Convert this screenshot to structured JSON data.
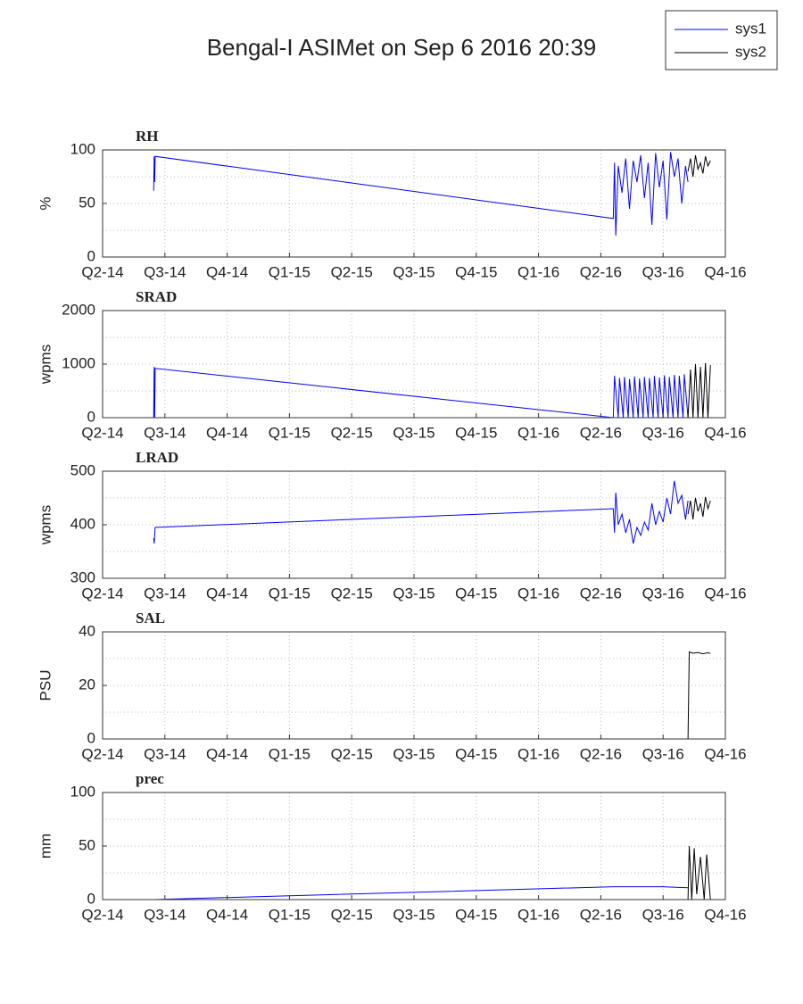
{
  "title": "Bengal-I ASIMet on Sep  6 2016 20:39",
  "chart_data": [
    {
      "type": "line",
      "title": "RH",
      "y_label": "%",
      "ylim": [
        0,
        100
      ],
      "yticks": [
        0,
        50,
        100
      ],
      "yminor_ticks": [
        25,
        75
      ],
      "xlim": [
        2014.25,
        2016.75
      ],
      "xticks": [
        {
          "value": 2014.25,
          "label": "Q2-14"
        },
        {
          "value": 2014.5,
          "label": "Q3-14"
        },
        {
          "value": 2014.75,
          "label": "Q4-14"
        },
        {
          "value": 2015.0,
          "label": "Q1-15"
        },
        {
          "value": 2015.25,
          "label": "Q2-15"
        },
        {
          "value": 2015.5,
          "label": "Q3-15"
        },
        {
          "value": 2015.75,
          "label": "Q4-15"
        },
        {
          "value": 2016.0,
          "label": "Q1-16"
        },
        {
          "value": 2016.25,
          "label": "Q2-16"
        },
        {
          "value": 2016.5,
          "label": "Q3-16"
        },
        {
          "value": 2016.75,
          "label": "Q4-16"
        }
      ],
      "grid": true,
      "series": [
        {
          "name": "sys1",
          "color": "#0000ff",
          "x": [
            2014.455,
            2014.457,
            2014.459,
            2014.461,
            2016.3,
            2016.305,
            2016.31,
            2016.32,
            2016.335,
            2016.35,
            2016.365,
            2016.38,
            2016.395,
            2016.41,
            2016.425,
            2016.44,
            2016.455,
            2016.47,
            2016.485,
            2016.5,
            2016.515,
            2016.53,
            2016.545,
            2016.56,
            2016.575,
            2016.59,
            2016.6
          ],
          "values": [
            62,
            94,
            70,
            94,
            36,
            88,
            20,
            85,
            60,
            92,
            45,
            90,
            70,
            95,
            55,
            88,
            30,
            97,
            65,
            90,
            35,
            98,
            75,
            92,
            50,
            85,
            70
          ]
        },
        {
          "name": "sys2",
          "color": "#000000",
          "x": [
            2016.6,
            2016.61,
            2016.62,
            2016.63,
            2016.64,
            2016.65,
            2016.66,
            2016.67,
            2016.68,
            2016.69
          ],
          "values": [
            80,
            92,
            75,
            95,
            82,
            88,
            78,
            94,
            85,
            90
          ]
        }
      ]
    },
    {
      "type": "line",
      "title": "SRAD",
      "y_label": "wpms",
      "ylim": [
        0,
        2000
      ],
      "yticks": [
        0,
        1000,
        2000
      ],
      "yminor_ticks": [
        500,
        1500
      ],
      "xlim": [
        2014.25,
        2016.75
      ],
      "xticks": [
        {
          "value": 2014.25,
          "label": "Q2-14"
        },
        {
          "value": 2014.5,
          "label": "Q3-14"
        },
        {
          "value": 2014.75,
          "label": "Q4-14"
        },
        {
          "value": 2015.0,
          "label": "Q1-15"
        },
        {
          "value": 2015.25,
          "label": "Q2-15"
        },
        {
          "value": 2015.5,
          "label": "Q3-15"
        },
        {
          "value": 2015.75,
          "label": "Q4-15"
        },
        {
          "value": 2016.0,
          "label": "Q1-16"
        },
        {
          "value": 2016.25,
          "label": "Q2-16"
        },
        {
          "value": 2016.5,
          "label": "Q3-16"
        },
        {
          "value": 2016.75,
          "label": "Q4-16"
        }
      ],
      "grid": true,
      "series": [
        {
          "name": "sys1",
          "color": "#0000ff",
          "x": [
            2014.455,
            2014.457,
            2014.459,
            2014.461,
            2016.3,
            2016.305,
            2016.32,
            2016.325,
            2016.34,
            2016.345,
            2016.36,
            2016.365,
            2016.38,
            2016.385,
            2016.4,
            2016.405,
            2016.42,
            2016.425,
            2016.44,
            2016.445,
            2016.46,
            2016.465,
            2016.48,
            2016.485,
            2016.5,
            2016.505,
            2016.52,
            2016.525,
            2016.54,
            2016.545,
            2016.56,
            2016.565,
            2016.58,
            2016.585,
            2016.6
          ],
          "values": [
            0,
            950,
            0,
            920,
            0,
            780,
            0,
            740,
            0,
            760,
            0,
            720,
            0,
            770,
            0,
            730,
            0,
            760,
            0,
            740,
            0,
            780,
            0,
            750,
            0,
            790,
            0,
            760,
            0,
            800,
            0,
            780,
            0,
            810,
            0
          ]
        },
        {
          "name": "sys2",
          "color": "#000000",
          "x": [
            2016.6,
            2016.61,
            2016.62,
            2016.63,
            2016.64,
            2016.65,
            2016.66,
            2016.67,
            2016.68,
            2016.69
          ],
          "values": [
            0,
            900,
            0,
            1000,
            0,
            950,
            0,
            1020,
            0,
            980
          ]
        }
      ]
    },
    {
      "type": "line",
      "title": "LRAD",
      "y_label": "wpms",
      "ylim": [
        300,
        500
      ],
      "yticks": [
        300,
        400,
        500
      ],
      "yminor_ticks": [
        350,
        450
      ],
      "xlim": [
        2014.25,
        2016.75
      ],
      "xticks": [
        {
          "value": 2014.25,
          "label": "Q2-14"
        },
        {
          "value": 2014.5,
          "label": "Q3-14"
        },
        {
          "value": 2014.75,
          "label": "Q4-14"
        },
        {
          "value": 2015.0,
          "label": "Q1-15"
        },
        {
          "value": 2015.25,
          "label": "Q2-15"
        },
        {
          "value": 2015.5,
          "label": "Q3-15"
        },
        {
          "value": 2015.75,
          "label": "Q4-15"
        },
        {
          "value": 2016.0,
          "label": "Q1-16"
        },
        {
          "value": 2016.25,
          "label": "Q2-16"
        },
        {
          "value": 2016.5,
          "label": "Q3-16"
        },
        {
          "value": 2016.75,
          "label": "Q4-16"
        }
      ],
      "grid": true,
      "series": [
        {
          "name": "sys1",
          "color": "#0000ff",
          "x": [
            2014.455,
            2014.457,
            2014.459,
            2014.461,
            2016.3,
            2016.305,
            2016.31,
            2016.32,
            2016.335,
            2016.35,
            2016.365,
            2016.38,
            2016.395,
            2016.41,
            2016.425,
            2016.44,
            2016.455,
            2016.47,
            2016.485,
            2016.5,
            2016.515,
            2016.53,
            2016.545,
            2016.56,
            2016.575,
            2016.59,
            2016.6
          ],
          "values": [
            375,
            365,
            380,
            395,
            430,
            385,
            460,
            400,
            420,
            385,
            410,
            365,
            395,
            380,
            405,
            390,
            440,
            400,
            425,
            405,
            450,
            420,
            482,
            440,
            455,
            410,
            445
          ]
        },
        {
          "name": "sys2",
          "color": "#000000",
          "x": [
            2016.6,
            2016.61,
            2016.62,
            2016.63,
            2016.64,
            2016.65,
            2016.66,
            2016.67,
            2016.68,
            2016.69
          ],
          "values": [
            420,
            445,
            410,
            450,
            425,
            440,
            415,
            452,
            430,
            445
          ]
        }
      ]
    },
    {
      "type": "line",
      "title": "SAL",
      "y_label": "PSU",
      "ylim": [
        0,
        40
      ],
      "yticks": [
        0,
        20,
        40
      ],
      "yminor_ticks": [
        10,
        30
      ],
      "xlim": [
        2014.25,
        2016.75
      ],
      "xticks": [
        {
          "value": 2014.25,
          "label": "Q2-14"
        },
        {
          "value": 2014.5,
          "label": "Q3-14"
        },
        {
          "value": 2014.75,
          "label": "Q4-14"
        },
        {
          "value": 2015.0,
          "label": "Q1-15"
        },
        {
          "value": 2015.25,
          "label": "Q2-15"
        },
        {
          "value": 2015.5,
          "label": "Q3-15"
        },
        {
          "value": 2015.75,
          "label": "Q4-15"
        },
        {
          "value": 2016.0,
          "label": "Q1-16"
        },
        {
          "value": 2016.25,
          "label": "Q2-16"
        },
        {
          "value": 2016.5,
          "label": "Q3-16"
        },
        {
          "value": 2016.75,
          "label": "Q4-16"
        }
      ],
      "grid": true,
      "series": [
        {
          "name": "sys1",
          "color": "#0000ff",
          "x": [
            2014.455,
            2016.6
          ],
          "values": [
            0,
            0
          ]
        },
        {
          "name": "sys2",
          "color": "#000000",
          "x": [
            2016.6,
            2016.605,
            2016.62,
            2016.64,
            2016.66,
            2016.68,
            2016.69
          ],
          "values": [
            0,
            32.5,
            32,
            32.3,
            31.8,
            32.2,
            31.9
          ]
        }
      ]
    },
    {
      "type": "line",
      "title": "prec",
      "y_label": "mm",
      "ylim": [
        0,
        100
      ],
      "yticks": [
        0,
        50,
        100
      ],
      "yminor_ticks": [
        25,
        75
      ],
      "xlim": [
        2014.25,
        2016.75
      ],
      "xticks": [
        {
          "value": 2014.25,
          "label": "Q2-14"
        },
        {
          "value": 2014.5,
          "label": "Q3-14"
        },
        {
          "value": 2014.75,
          "label": "Q4-14"
        },
        {
          "value": 2015.0,
          "label": "Q1-15"
        },
        {
          "value": 2015.25,
          "label": "Q2-15"
        },
        {
          "value": 2015.5,
          "label": "Q3-15"
        },
        {
          "value": 2015.75,
          "label": "Q4-15"
        },
        {
          "value": 2016.0,
          "label": "Q1-16"
        },
        {
          "value": 2016.25,
          "label": "Q2-16"
        },
        {
          "value": 2016.5,
          "label": "Q3-16"
        },
        {
          "value": 2016.75,
          "label": "Q4-16"
        }
      ],
      "grid": true,
      "series": [
        {
          "name": "sys1",
          "color": "#0000ff",
          "x": [
            2014.455,
            2016.3,
            2016.5,
            2016.6
          ],
          "values": [
            0,
            12,
            12,
            11
          ]
        },
        {
          "name": "sys2",
          "color": "#000000",
          "x": [
            2016.6,
            2016.605,
            2016.615,
            2016.625,
            2016.635,
            2016.65,
            2016.665,
            2016.675,
            2016.69
          ],
          "values": [
            0,
            50,
            0,
            48,
            5,
            40,
            0,
            42,
            0
          ]
        }
      ]
    }
  ]
}
